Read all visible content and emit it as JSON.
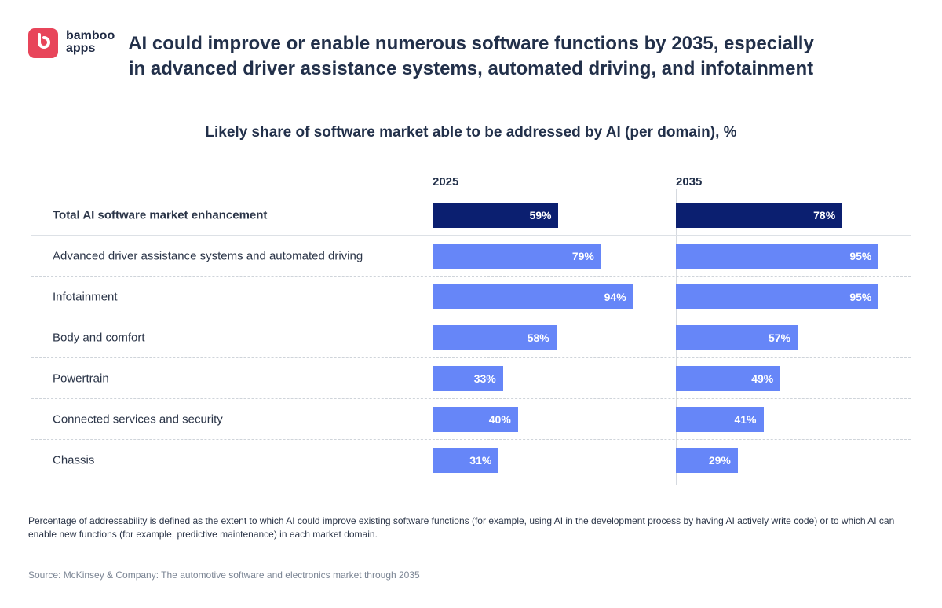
{
  "logo": {
    "text_line1": "bamboo",
    "text_line2": "apps",
    "color": "#e8455a"
  },
  "title": "AI could improve or enable numerous software functions by 2035, especially in advanced driver assistance systems, automated driving, and infotainment",
  "subtitle": "Likely share of software market able to be addressed by AI (per domain), %",
  "chart_data": {
    "type": "bar",
    "orientation": "horizontal",
    "categories": [
      "Total AI software market enhancement",
      "Advanced driver assistance systems and automated driving",
      "Infotainment",
      "Body and comfort",
      "Powertrain",
      "Connected services and security",
      "Chassis"
    ],
    "series": [
      {
        "name": "2025",
        "values": [
          59,
          79,
          94,
          58,
          33,
          40,
          31
        ]
      },
      {
        "name": "2035",
        "values": [
          78,
          95,
          95,
          57,
          49,
          41,
          29
        ]
      }
    ],
    "unit": "%",
    "xlim": [
      0,
      100
    ],
    "colors": {
      "total": "#0b1f70",
      "domain": "#6686f8"
    }
  },
  "footnote": "Percentage of addressability is defined as the extent to which AI could improve existing software functions (for example, using AI in the development process by having AI actively write code) or to which AI can enable new functions (for example, predictive maintenance) in each market domain.",
  "source": "Source: McKinsey & Company: The automotive software and electronics market through 2035"
}
